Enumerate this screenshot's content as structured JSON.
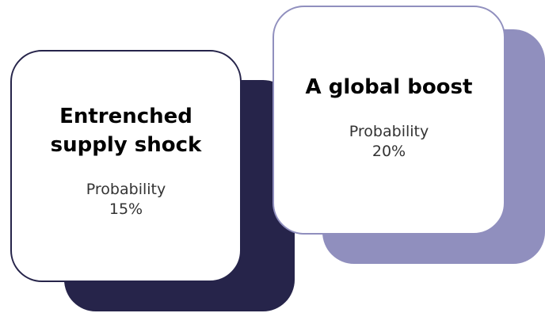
{
  "cards": [
    {
      "title": "Entrenched supply shock",
      "probability_label": "Probability",
      "probability_value": "15%",
      "accent_color": "#26244a"
    },
    {
      "title": "A global boost",
      "probability_label": "Probability",
      "probability_value": "20%",
      "accent_color": "#908fbe"
    }
  ]
}
